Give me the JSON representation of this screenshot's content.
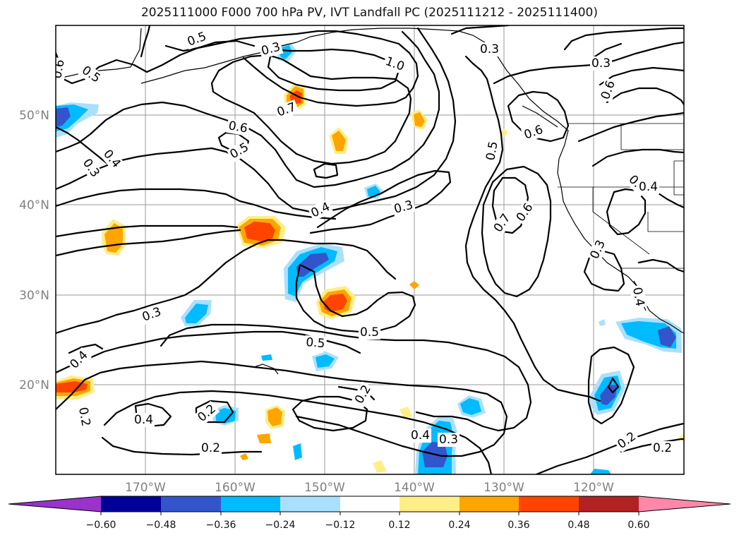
{
  "title": "2025111000 F000 700 hPa PV, IVT Landfall PC (2025111212 - 2025111400)",
  "map": {
    "lon_range": [
      180,
      110
    ],
    "lat_range": [
      10,
      60
    ],
    "lat_ticks": [
      "20°N",
      "30°N",
      "40°N",
      "50°N"
    ],
    "lon_ticks": [
      "170°W",
      "160°W",
      "150°W",
      "140°W",
      "130°W",
      "120°W"
    ],
    "contour_labels": [
      "0.5",
      "0.6",
      "0.5",
      "0.3",
      "1.0",
      "0.3",
      "0.3",
      "0.6",
      "0.7",
      "0.6",
      "0.5",
      "0.4",
      "0.3",
      "0.6",
      "0.5",
      "0.4",
      "0.3",
      "0.4",
      "0.5",
      "0.7",
      "0.6",
      "0.3",
      "0.4",
      "0.3",
      "0.5",
      "0.4",
      "0.4",
      "0.2",
      "0.2",
      "0.4",
      "0.2",
      "0.2",
      "0.4",
      "0.3",
      "0.2",
      "0.2"
    ]
  },
  "colorbar": {
    "colors": [
      "#9933cc",
      "#000099",
      "#3355cc",
      "#00bbff",
      "#aae0ff",
      "#ffffff",
      "#ffee88",
      "#ffa500",
      "#ff4400",
      "#b22222",
      "#ff88aa"
    ],
    "tick_labels": [
      "−0.60",
      "−0.48",
      "−0.36",
      "−0.24",
      "−0.12",
      "0.12",
      "0.24",
      "0.36",
      "0.48",
      "0.60"
    ]
  },
  "shading_colors": {
    "neg_light": "#aae0ff",
    "neg_mid": "#00bbff",
    "neg_strong": "#3355cc",
    "pos_light": "#ffee88",
    "pos_mid": "#ffa500",
    "pos_strong": "#ff4400"
  }
}
